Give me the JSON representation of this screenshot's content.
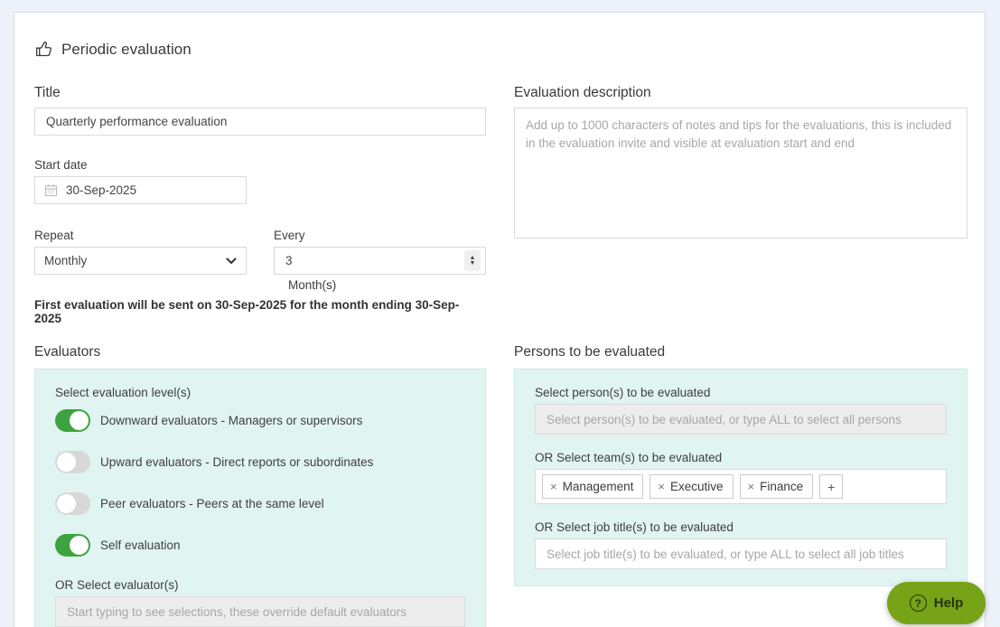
{
  "header": {
    "title": "Periodic evaluation"
  },
  "form": {
    "title_label": "Title",
    "title_value": "Quarterly performance evaluation",
    "start_date_label": "Start date",
    "start_date_value": "30-Sep-2025",
    "repeat_label": "Repeat",
    "repeat_value": "Monthly",
    "every_label": "Every",
    "every_value": "3",
    "every_unit": "Month(s)",
    "summary": "First evaluation will be sent on 30-Sep-2025 for the month ending 30-Sep-2025"
  },
  "description": {
    "label": "Evaluation description",
    "placeholder": "Add up to 1000 characters of notes and tips for the evaluations, this is included in the evaluation invite and visible at evaluation start and end"
  },
  "evaluators": {
    "heading": "Evaluators",
    "levels_label": "Select evaluation level(s)",
    "toggles": [
      {
        "label": "Downward evaluators - Managers or supervisors",
        "on": true
      },
      {
        "label": "Upward evaluators - Direct reports or subordinates",
        "on": false
      },
      {
        "label": "Peer evaluators - Peers at the same level",
        "on": false
      },
      {
        "label": "Self evaluation",
        "on": true
      }
    ],
    "or_select_label": "OR Select evaluator(s)",
    "or_select_placeholder": "Start typing to see selections, these override default evaluators"
  },
  "persons": {
    "heading": "Persons to be evaluated",
    "select_label": "Select person(s) to be evaluated",
    "select_placeholder": "Select person(s) to be evaluated, or type ALL to select all persons",
    "teams_label": "OR Select team(s) to be evaluated",
    "teams": [
      "Management",
      "Executive",
      "Finance"
    ],
    "add_team_label": "+",
    "remove_symbol": "×",
    "job_titles_label": "OR Select job title(s) to be evaluated",
    "job_titles_placeholder": "Select job title(s) to be evaluated, or type ALL to select all job titles"
  },
  "help": {
    "label": "Help"
  },
  "icons": {
    "header": "thumbs-up-icon",
    "date": "calendar-icon",
    "repeat": "chevron-down-icon",
    "every": "stepper-arrows-icon",
    "help": "question-circle-icon",
    "team_remove": "x-icon",
    "team_add": "plus-icon"
  },
  "colors": {
    "page_bg": "#edf1f9",
    "panel_bg": "#e0f5f1",
    "toggle_on": "#3da33f",
    "toggle_off": "#d8d8d8",
    "help_bg": "#76a317"
  }
}
